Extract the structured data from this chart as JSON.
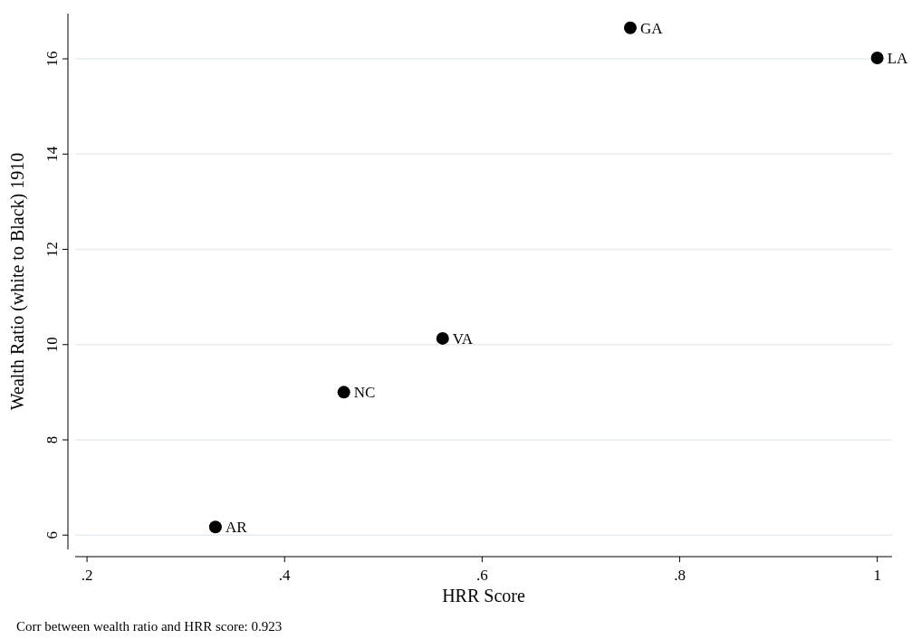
{
  "chart_data": {
    "type": "scatter",
    "xlabel": "HRR Score",
    "ylabel": "Wealth Ratio (white to Black) 1910",
    "x": [
      0.33,
      0.46,
      0.56,
      0.75,
      1.0
    ],
    "series": [
      {
        "color": "#000000",
        "values": [
          6.17,
          9.0,
          10.13,
          16.65,
          16.02
        ]
      }
    ],
    "xlim": [
      0.188,
      1.015
    ],
    "ylim": [
      5.7,
      16.95
    ],
    "xticks": [
      {
        "value": 0.2,
        "label": ".2"
      },
      {
        "value": 0.4,
        "label": ".4"
      },
      {
        "value": 0.6,
        "label": ".6"
      },
      {
        "value": 0.8,
        "label": ".8"
      },
      1
    ],
    "yticks": [
      6,
      8,
      10,
      12,
      14,
      16
    ],
    "grid": "y",
    "marker": "circle",
    "annotations": [
      {
        "text": "AR",
        "x": 0.33,
        "y": 6.17
      },
      {
        "text": "NC",
        "x": 0.46,
        "y": 9.0
      },
      {
        "text": "VA",
        "x": 0.56,
        "y": 10.13
      },
      {
        "text": "GA",
        "x": 0.75,
        "y": 16.65
      },
      {
        "text": "LA",
        "x": 1.0,
        "y": 16.02
      },
      "Corr between wealth ratio and HRR score: 0.923"
    ]
  }
}
